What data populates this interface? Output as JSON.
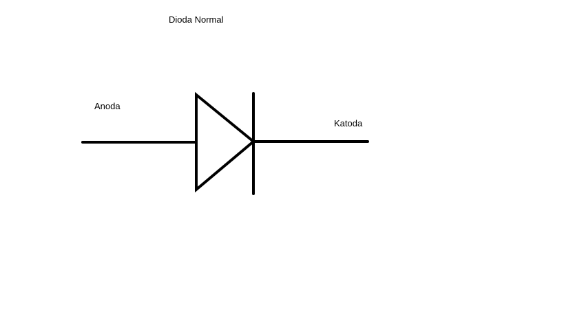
{
  "diagram": {
    "title": "Dioda Normal",
    "anode_label": "Anoda",
    "cathode_label": "Katoda",
    "stroke_color": "#000000",
    "background_color": "#ffffff"
  }
}
